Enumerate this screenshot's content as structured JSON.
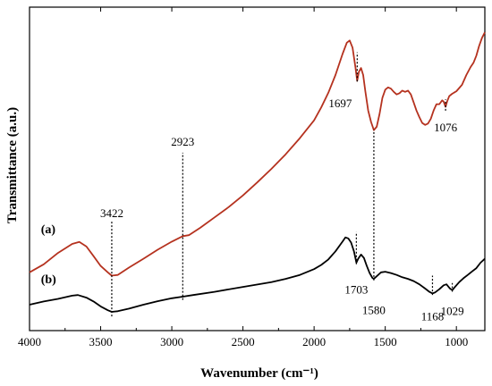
{
  "chart_data": {
    "type": "line",
    "xlabel": "Wavenumber (cm⁻¹)",
    "ylabel": "Transmittance (a.u.)",
    "xlim": [
      4000,
      800
    ],
    "x_reversed": true,
    "x_ticks": [
      4000,
      3500,
      3000,
      2500,
      2000,
      1500,
      1000
    ],
    "ylim": [
      0,
      1
    ],
    "grid": false,
    "legend": "none",
    "series": [
      {
        "name": "(a)",
        "color": "#b5321f",
        "points": [
          [
            4000,
            0.18
          ],
          [
            3900,
            0.205
          ],
          [
            3800,
            0.24
          ],
          [
            3700,
            0.268
          ],
          [
            3650,
            0.274
          ],
          [
            3600,
            0.26
          ],
          [
            3550,
            0.23
          ],
          [
            3500,
            0.2
          ],
          [
            3450,
            0.18
          ],
          [
            3422,
            0.17
          ],
          [
            3380,
            0.172
          ],
          [
            3300,
            0.195
          ],
          [
            3200,
            0.222
          ],
          [
            3100,
            0.25
          ],
          [
            3000,
            0.275
          ],
          [
            2923,
            0.292
          ],
          [
            2880,
            0.295
          ],
          [
            2800,
            0.318
          ],
          [
            2700,
            0.35
          ],
          [
            2600,
            0.382
          ],
          [
            2500,
            0.418
          ],
          [
            2400,
            0.458
          ],
          [
            2300,
            0.5
          ],
          [
            2200,
            0.545
          ],
          [
            2100,
            0.595
          ],
          [
            2000,
            0.65
          ],
          [
            1950,
            0.69
          ],
          [
            1900,
            0.735
          ],
          [
            1850,
            0.79
          ],
          [
            1800,
            0.855
          ],
          [
            1770,
            0.89
          ],
          [
            1750,
            0.897
          ],
          [
            1730,
            0.875
          ],
          [
            1710,
            0.815
          ],
          [
            1697,
            0.772
          ],
          [
            1685,
            0.8
          ],
          [
            1670,
            0.812
          ],
          [
            1655,
            0.79
          ],
          [
            1640,
            0.74
          ],
          [
            1620,
            0.68
          ],
          [
            1600,
            0.645
          ],
          [
            1580,
            0.62
          ],
          [
            1560,
            0.63
          ],
          [
            1540,
            0.67
          ],
          [
            1520,
            0.72
          ],
          [
            1500,
            0.745
          ],
          [
            1480,
            0.752
          ],
          [
            1460,
            0.748
          ],
          [
            1440,
            0.738
          ],
          [
            1420,
            0.73
          ],
          [
            1400,
            0.734
          ],
          [
            1380,
            0.742
          ],
          [
            1360,
            0.738
          ],
          [
            1340,
            0.742
          ],
          [
            1320,
            0.73
          ],
          [
            1300,
            0.705
          ],
          [
            1280,
            0.68
          ],
          [
            1260,
            0.66
          ],
          [
            1240,
            0.642
          ],
          [
            1220,
            0.636
          ],
          [
            1200,
            0.64
          ],
          [
            1180,
            0.655
          ],
          [
            1160,
            0.68
          ],
          [
            1140,
            0.7
          ],
          [
            1120,
            0.7
          ],
          [
            1100,
            0.712
          ],
          [
            1090,
            0.708
          ],
          [
            1076,
            0.692
          ],
          [
            1065,
            0.708
          ],
          [
            1050,
            0.725
          ],
          [
            1030,
            0.732
          ],
          [
            1000,
            0.74
          ],
          [
            960,
            0.76
          ],
          [
            930,
            0.79
          ],
          [
            900,
            0.815
          ],
          [
            880,
            0.828
          ],
          [
            860,
            0.85
          ],
          [
            840,
            0.88
          ],
          [
            820,
            0.905
          ],
          [
            800,
            0.922
          ]
        ]
      },
      {
        "name": "(b)",
        "color": "#000000",
        "points": [
          [
            4000,
            0.08
          ],
          [
            3900,
            0.09
          ],
          [
            3800,
            0.098
          ],
          [
            3700,
            0.108
          ],
          [
            3660,
            0.11
          ],
          [
            3600,
            0.102
          ],
          [
            3550,
            0.09
          ],
          [
            3500,
            0.075
          ],
          [
            3450,
            0.063
          ],
          [
            3422,
            0.058
          ],
          [
            3380,
            0.06
          ],
          [
            3300,
            0.068
          ],
          [
            3200,
            0.08
          ],
          [
            3100,
            0.091
          ],
          [
            3000,
            0.1
          ],
          [
            2923,
            0.105
          ],
          [
            2850,
            0.11
          ],
          [
            2700,
            0.12
          ],
          [
            2500,
            0.135
          ],
          [
            2300,
            0.15
          ],
          [
            2200,
            0.16
          ],
          [
            2100,
            0.172
          ],
          [
            2000,
            0.19
          ],
          [
            1950,
            0.203
          ],
          [
            1900,
            0.22
          ],
          [
            1850,
            0.245
          ],
          [
            1800,
            0.275
          ],
          [
            1780,
            0.288
          ],
          [
            1760,
            0.285
          ],
          [
            1740,
            0.272
          ],
          [
            1720,
            0.245
          ],
          [
            1703,
            0.21
          ],
          [
            1690,
            0.222
          ],
          [
            1670,
            0.235
          ],
          [
            1650,
            0.225
          ],
          [
            1630,
            0.2
          ],
          [
            1610,
            0.178
          ],
          [
            1590,
            0.163
          ],
          [
            1580,
            0.16
          ],
          [
            1560,
            0.168
          ],
          [
            1530,
            0.18
          ],
          [
            1500,
            0.182
          ],
          [
            1460,
            0.178
          ],
          [
            1420,
            0.172
          ],
          [
            1380,
            0.165
          ],
          [
            1340,
            0.16
          ],
          [
            1300,
            0.153
          ],
          [
            1260,
            0.143
          ],
          [
            1220,
            0.13
          ],
          [
            1190,
            0.12
          ],
          [
            1168,
            0.115
          ],
          [
            1150,
            0.118
          ],
          [
            1120,
            0.128
          ],
          [
            1090,
            0.14
          ],
          [
            1070,
            0.143
          ],
          [
            1045,
            0.13
          ],
          [
            1029,
            0.125
          ],
          [
            1010,
            0.135
          ],
          [
            980,
            0.15
          ],
          [
            950,
            0.162
          ],
          [
            920,
            0.172
          ],
          [
            890,
            0.183
          ],
          [
            860,
            0.193
          ],
          [
            830,
            0.21
          ],
          [
            800,
            0.222
          ]
        ]
      }
    ],
    "annotations": [
      {
        "label": "3422",
        "x": 3422,
        "line_from": 0.044,
        "line_to": 0.34,
        "text_y": 0.365
      },
      {
        "label": "2923",
        "x": 2923,
        "line_from": 0.095,
        "line_to": 0.55,
        "text_y": 0.585
      },
      {
        "label": "1697",
        "x": 1697,
        "line_from": 0.77,
        "line_to": 0.86,
        "text_y": 0.705,
        "text_anchor": "end",
        "text_dx": -6
      },
      {
        "label": "1076",
        "x": 1076,
        "line_from": 0.68,
        "line_to": 0.715,
        "text_y": 0.63
      },
      {
        "label": "1703",
        "x": 1703,
        "line_from": 0.205,
        "line_to": 0.305,
        "text_y": 0.128
      },
      {
        "label": "1580",
        "x": 1580,
        "line_from": 0.155,
        "line_to": 0.62,
        "text_y": 0.065
      },
      {
        "label": "1168",
        "x": 1168,
        "line_from": 0.11,
        "line_to": 0.17,
        "text_y": 0.045
      },
      {
        "label": "1029",
        "x": 1029,
        "line_from": 0.12,
        "line_to": 0.147,
        "text_y": 0.062
      }
    ],
    "series_labels": [
      {
        "label": "(a)",
        "x": 3920,
        "y": 0.315
      },
      {
        "label": "(b)",
        "x": 3920,
        "y": 0.16
      }
    ]
  }
}
